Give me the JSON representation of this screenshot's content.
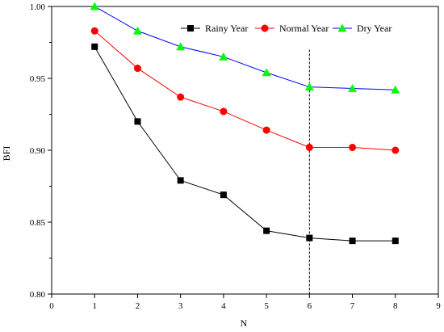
{
  "chart_data": {
    "type": "line",
    "xlabel": "N",
    "ylabel": "BFI",
    "xlim": [
      0,
      9
    ],
    "ylim": [
      0.8,
      1.0
    ],
    "xticks": [
      0,
      1,
      2,
      3,
      4,
      5,
      6,
      7,
      8,
      9
    ],
    "yticks": [
      0.8,
      0.85,
      0.9,
      0.95,
      1.0
    ],
    "xtick_labels": [
      "0",
      "1",
      "2",
      "3",
      "4",
      "5",
      "6",
      "7",
      "8",
      "9"
    ],
    "ytick_labels": [
      "0.80",
      "0.85",
      "0.90",
      "0.95",
      "1.00"
    ],
    "grid": false,
    "legend_position": "top-right",
    "reference_line": {
      "x": 6,
      "style": "dashed"
    },
    "x": [
      1,
      2,
      3,
      4,
      5,
      6,
      7,
      8
    ],
    "series": [
      {
        "name": "Rainy Year",
        "color": "#000000",
        "marker": "square",
        "values": [
          0.972,
          0.92,
          0.879,
          0.869,
          0.844,
          0.839,
          0.837,
          0.837
        ]
      },
      {
        "name": "Normal Year",
        "color": "#ff0000",
        "marker": "circle",
        "values": [
          0.983,
          0.957,
          0.937,
          0.927,
          0.914,
          0.902,
          0.902,
          0.9
        ]
      },
      {
        "name": "Dry Year",
        "color": "#0000ff",
        "marker_color": "#00ff00",
        "marker": "triangle",
        "values": [
          1.0,
          0.983,
          0.972,
          0.965,
          0.954,
          0.944,
          0.943,
          0.942
        ]
      }
    ]
  }
}
